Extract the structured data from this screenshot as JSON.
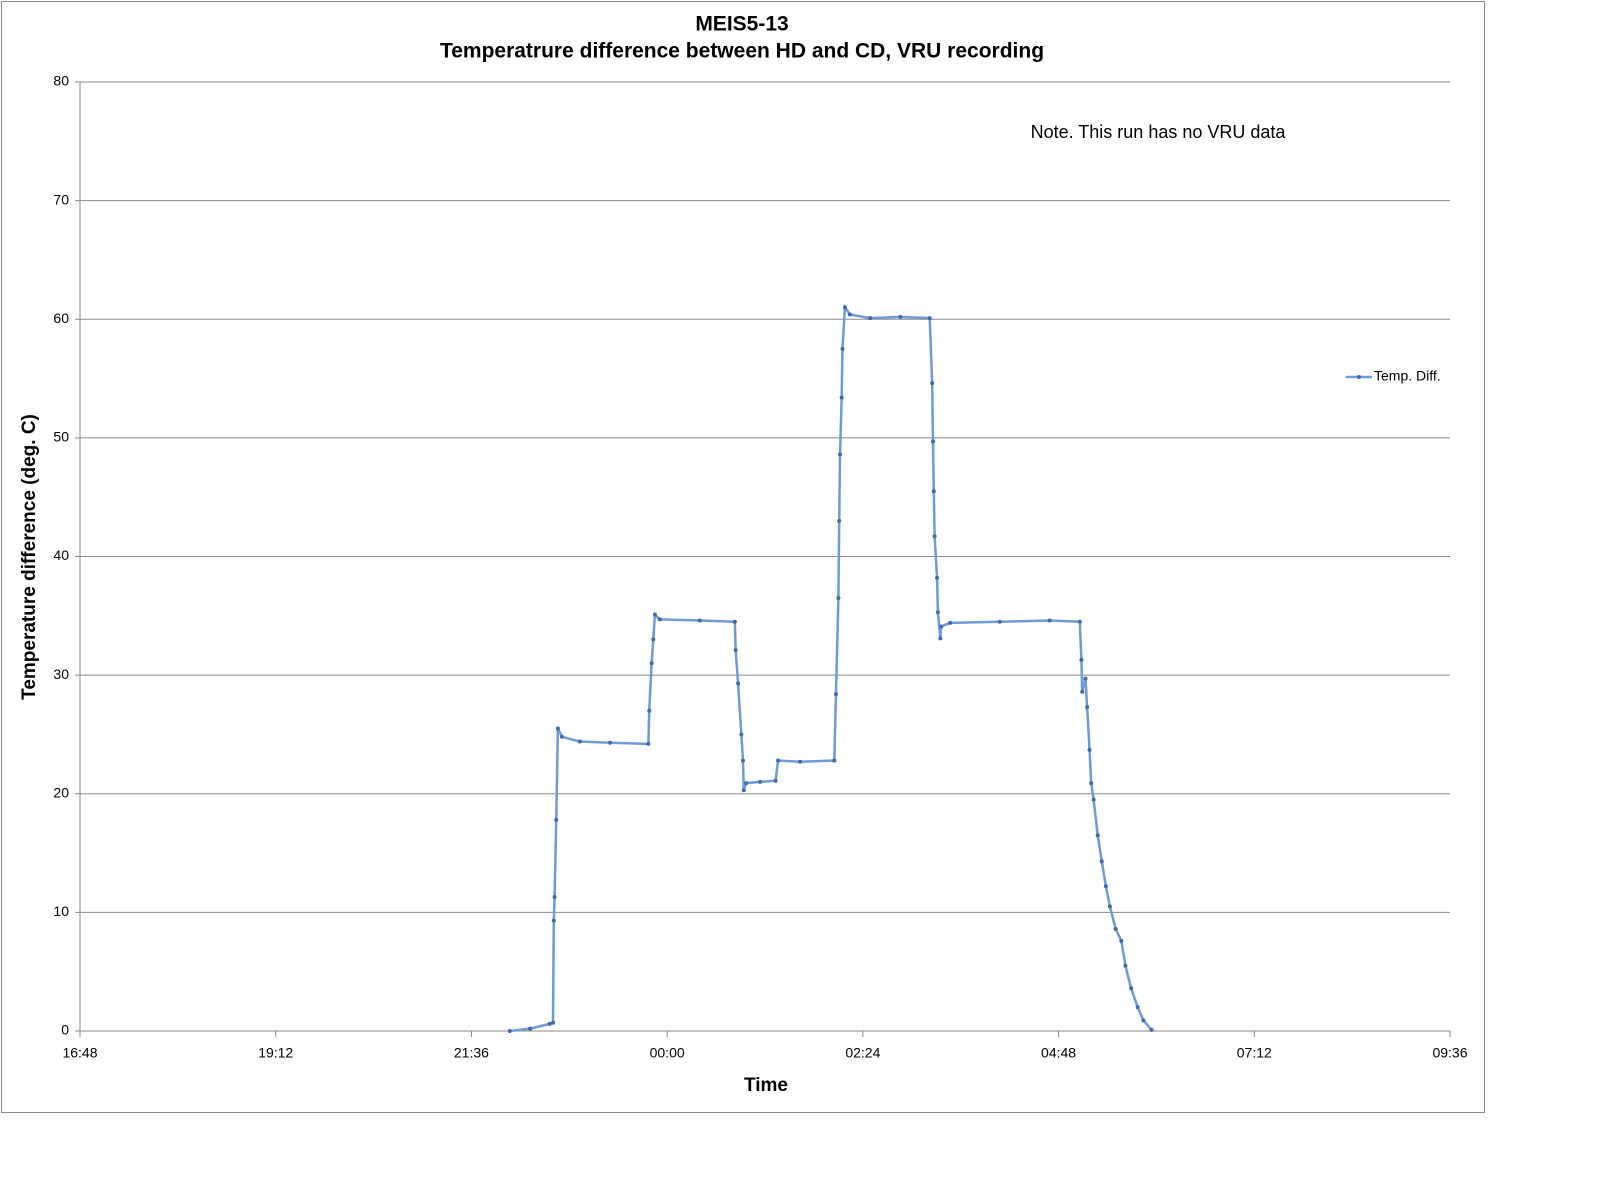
{
  "chart_data": {
    "type": "line",
    "title": "MEIS5-13",
    "subtitle": "Temperatrure difference between HD and CD, VRU recording",
    "annotation": "Note. This run has no VRU data",
    "x_label": "Time",
    "y_label": "Temperature difference (deg. C)",
    "x": [
      22.07,
      22.32,
      22.56,
      22.6,
      22.61,
      22.62,
      22.64,
      22.66,
      22.71,
      22.93,
      23.3,
      23.77,
      23.78,
      23.81,
      23.83,
      23.85,
      23.91,
      24.4,
      24.83,
      24.84,
      24.87,
      24.91,
      24.93,
      24.94,
      24.97,
      25.14,
      25.33,
      25.36,
      25.63,
      26.05,
      26.07,
      26.1,
      26.11,
      26.12,
      26.14,
      26.15,
      26.18,
      26.24,
      26.49,
      26.86,
      27.22,
      27.25,
      27.26,
      27.27,
      27.28,
      27.31,
      27.32,
      27.35,
      27.36,
      27.47,
      28.08,
      28.69,
      29.06,
      29.08,
      29.09,
      29.13,
      29.15,
      29.18,
      29.2,
      29.23,
      29.28,
      29.33,
      29.38,
      29.43,
      29.5,
      29.57,
      29.62,
      29.69,
      29.77,
      29.84,
      29.94
    ],
    "series": [
      {
        "name": "Temp. Diff.",
        "color": "#6f9ad8",
        "values": [
          0,
          0.2,
          0.6,
          0.7,
          9.3,
          11.3,
          17.8,
          25.5,
          24.8,
          24.4,
          24.3,
          24.2,
          27,
          31,
          33,
          35.1,
          34.7,
          34.6,
          34.5,
          32.1,
          29.3,
          25,
          22.8,
          20.3,
          20.9,
          21,
          21.1,
          22.8,
          22.7,
          22.8,
          28.4,
          36.5,
          43,
          48.6,
          53.4,
          57.5,
          61,
          60.4,
          60.1,
          60.2,
          60.1,
          54.6,
          49.7,
          45.5,
          41.7,
          38.2,
          35.3,
          33.1,
          34.1,
          34.4,
          34.5,
          34.6,
          34.5,
          31.3,
          28.6,
          29.7,
          27.3,
          23.7,
          20.9,
          19.5,
          16.5,
          14.3,
          12.2,
          10.5,
          8.6,
          7.6,
          5.5,
          3.6,
          2.0,
          0.9,
          0.1
        ]
      }
    ],
    "xlim": [
      16.8,
      33.6
    ],
    "xticks": [
      {
        "value": 16.8,
        "label": "16:48"
      },
      {
        "value": 19.2,
        "label": "19:12"
      },
      {
        "value": 21.6,
        "label": "21:36"
      },
      {
        "value": 24,
        "label": "00:00"
      },
      {
        "value": 26.4,
        "label": "02:24"
      },
      {
        "value": 28.8,
        "label": "04:48"
      },
      {
        "value": 31.2,
        "label": "07:12"
      },
      {
        "value": 33.6,
        "label": "09:36"
      }
    ],
    "ylim": [
      0,
      80
    ],
    "yticks": [
      0,
      10,
      20,
      30,
      40,
      50,
      60,
      70,
      80
    ],
    "grid": true,
    "legend": "right"
  }
}
